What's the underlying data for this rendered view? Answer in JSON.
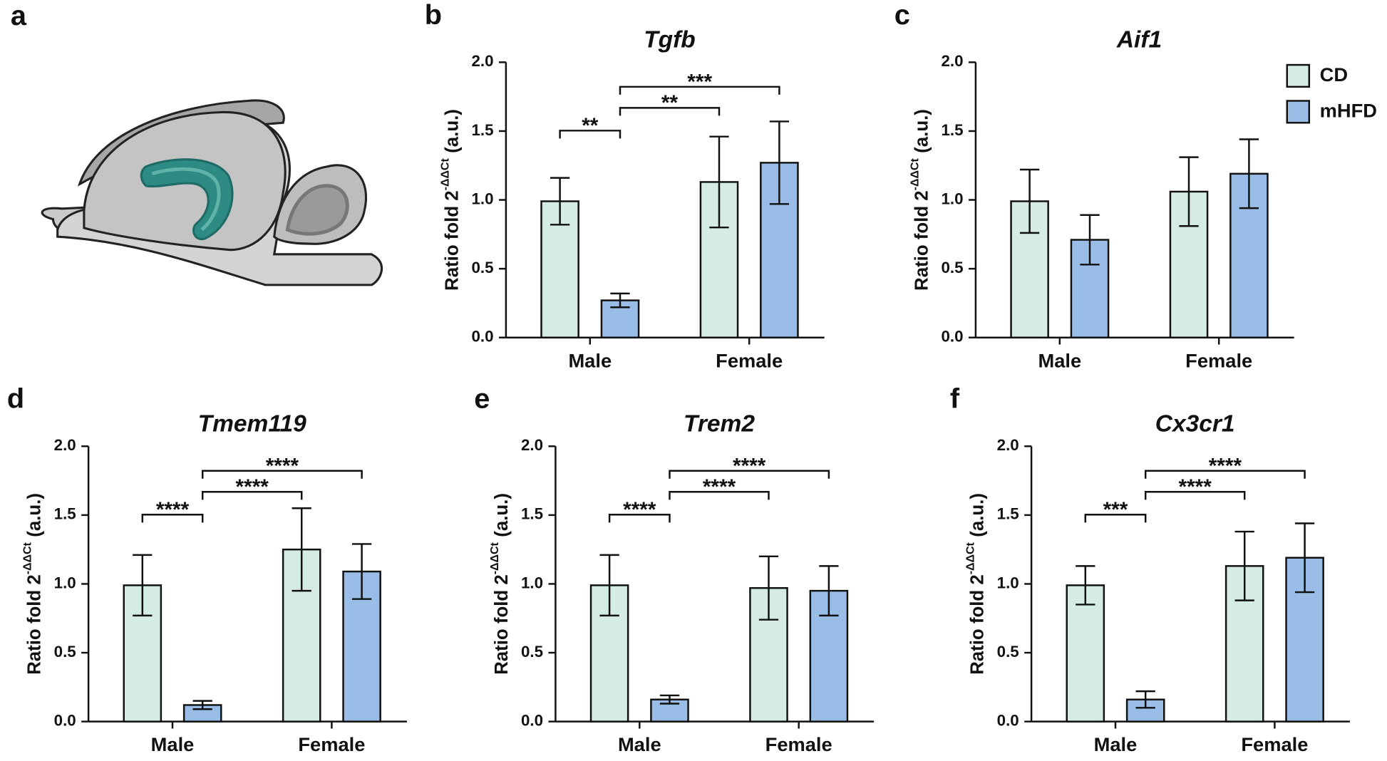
{
  "figure": {
    "panel_a": "a"
  },
  "chart_data": [
    {
      "type": "bar",
      "panel": "b",
      "title": "Tgfb",
      "ylabel": [
        "Ratio fold 2",
        "-ΔΔCt",
        "(a.u.)"
      ],
      "categories": [
        "Male",
        "Female"
      ],
      "series": [
        {
          "name": "CD",
          "color": "#d5ece2",
          "values": [
            0.99,
            1.13
          ],
          "errors": [
            0.17,
            0.33
          ]
        },
        {
          "name": "mHFD",
          "color": "#99bde6",
          "values": [
            0.27,
            1.27
          ],
          "errors": [
            0.05,
            0.3
          ]
        }
      ],
      "ylim": [
        0,
        2
      ],
      "yticks": [
        {
          "value": 0,
          "label": "0.0"
        },
        {
          "value": 0.5,
          "label": "0.5"
        },
        {
          "value": 1,
          "label": "1.0"
        },
        {
          "value": 1.5,
          "label": "1.5"
        },
        {
          "value": 2,
          "label": "2.0"
        }
      ],
      "brackets": [
        {
          "label": "**",
          "from": 0,
          "to": 1
        },
        {
          "label": "**",
          "from": 1,
          "to": 2
        },
        {
          "label": "***",
          "from": 1,
          "to": 3
        }
      ]
    },
    {
      "type": "bar",
      "panel": "c",
      "title": "Aif1",
      "ylabel": [
        "Ratio fold 2",
        "-ΔΔCt",
        "(a.u.)"
      ],
      "categories": [
        "Male",
        "Female"
      ],
      "series": [
        {
          "name": "CD",
          "color": "#d5ece2",
          "values": [
            0.99,
            1.06
          ],
          "errors": [
            0.23,
            0.25
          ]
        },
        {
          "name": "mHFD",
          "color": "#99bde6",
          "values": [
            0.71,
            1.19
          ],
          "errors": [
            0.18,
            0.25
          ]
        }
      ],
      "ylim": [
        0,
        2
      ],
      "yticks": [
        {
          "value": 0,
          "label": "0.0"
        },
        {
          "value": 0.5,
          "label": "0.5"
        },
        {
          "value": 1,
          "label": "1.0"
        },
        {
          "value": 1.5,
          "label": "1.5"
        },
        {
          "value": 2,
          "label": "2.0"
        }
      ],
      "legend": "top-right"
    },
    {
      "type": "bar",
      "panel": "d",
      "title": "Tmem119",
      "ylabel": [
        "Ratio fold 2",
        "-ΔΔCt",
        "(a.u.)"
      ],
      "categories": [
        "Male",
        "Female"
      ],
      "series": [
        {
          "name": "CD",
          "color": "#d5ece2",
          "values": [
            0.99,
            1.25
          ],
          "errors": [
            0.22,
            0.3
          ]
        },
        {
          "name": "mHFD",
          "color": "#99bde6",
          "values": [
            0.12,
            1.09
          ],
          "errors": [
            0.03,
            0.2
          ]
        }
      ],
      "ylim": [
        0,
        2
      ],
      "yticks": [
        {
          "value": 0,
          "label": "0.0"
        },
        {
          "value": 0.5,
          "label": "0.5"
        },
        {
          "value": 1,
          "label": "1.0"
        },
        {
          "value": 1.5,
          "label": "1.5"
        },
        {
          "value": 2,
          "label": "2.0"
        }
      ],
      "brackets": [
        {
          "label": "****",
          "from": 0,
          "to": 1
        },
        {
          "label": "****",
          "from": 1,
          "to": 2
        },
        {
          "label": "****",
          "from": 1,
          "to": 3
        }
      ]
    },
    {
      "type": "bar",
      "panel": "e",
      "title": "Trem2",
      "ylabel": [
        "Ratio fold 2",
        "-ΔΔCt",
        "(a.u.)"
      ],
      "categories": [
        "Male",
        "Female"
      ],
      "series": [
        {
          "name": "CD",
          "color": "#d5ece2",
          "values": [
            0.99,
            0.97
          ],
          "errors": [
            0.22,
            0.23
          ]
        },
        {
          "name": "mHFD",
          "color": "#99bde6",
          "values": [
            0.16,
            0.95
          ],
          "errors": [
            0.03,
            0.18
          ]
        }
      ],
      "ylim": [
        0,
        2
      ],
      "yticks": [
        {
          "value": 0,
          "label": "0.0"
        },
        {
          "value": 0.5,
          "label": "0.5"
        },
        {
          "value": 1,
          "label": "1.0"
        },
        {
          "value": 1.5,
          "label": "1.5"
        },
        {
          "value": 2,
          "label": "2.0"
        }
      ],
      "brackets": [
        {
          "label": "****",
          "from": 0,
          "to": 1
        },
        {
          "label": "****",
          "from": 1,
          "to": 2
        },
        {
          "label": "****",
          "from": 1,
          "to": 3
        }
      ]
    },
    {
      "type": "bar",
      "panel": "f",
      "title": "Cx3cr1",
      "ylabel": [
        "Ratio fold 2",
        "-ΔΔCt",
        "(a.u.)"
      ],
      "categories": [
        "Male",
        "Female"
      ],
      "series": [
        {
          "name": "CD",
          "color": "#d5ece2",
          "values": [
            0.99,
            1.13
          ],
          "errors": [
            0.14,
            0.25
          ]
        },
        {
          "name": "mHFD",
          "color": "#99bde6",
          "values": [
            0.16,
            1.19
          ],
          "errors": [
            0.06,
            0.25
          ]
        }
      ],
      "ylim": [
        0,
        2
      ],
      "yticks": [
        {
          "value": 0,
          "label": "0.0"
        },
        {
          "value": 0.5,
          "label": "0.5"
        },
        {
          "value": 1,
          "label": "1.0"
        },
        {
          "value": 1.5,
          "label": "1.5"
        },
        {
          "value": 2,
          "label": "2.0"
        }
      ],
      "brackets": [
        {
          "label": "***",
          "from": 0,
          "to": 1
        },
        {
          "label": "****",
          "from": 1,
          "to": 2
        },
        {
          "label": "****",
          "from": 1,
          "to": 3
        }
      ]
    }
  ]
}
